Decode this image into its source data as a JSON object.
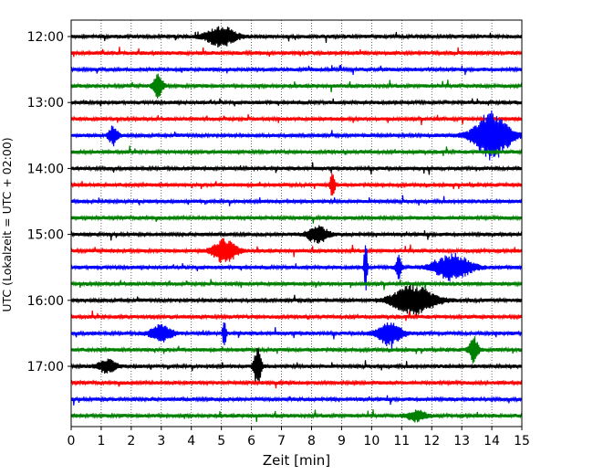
{
  "chart_data": {
    "type": "line",
    "title": "",
    "xlabel": "Zeit  [min]",
    "ylabel": "UTC (Lokalzeit = UTC + 02:00)",
    "xlim": [
      0,
      15
    ],
    "x_ticks": [
      "0",
      "1",
      "2",
      "3",
      "4",
      "5",
      "6",
      "7",
      "8",
      "9",
      "10",
      "11",
      "12",
      "13",
      "14",
      "15"
    ],
    "y_tick_labels": [
      "12:00",
      "13:00",
      "14:00",
      "15:00",
      "16:00",
      "17:00"
    ],
    "grid": {
      "vertical_dotted": true
    },
    "trace_colors": [
      "#000000",
      "#ff0000",
      "#0000ff",
      "#008000"
    ],
    "trace_start_hours": [
      "12:00",
      "12:15",
      "12:30",
      "12:45",
      "13:00",
      "13:15",
      "13:30",
      "13:45",
      "14:00",
      "14:15",
      "14:30",
      "14:45",
      "15:00",
      "15:15",
      "15:30",
      "15:45",
      "16:00",
      "16:15",
      "16:30",
      "16:45",
      "17:00",
      "17:15",
      "17:30",
      "17:45"
    ],
    "events": [
      {
        "trace": 0,
        "at_min": 5.0,
        "amp": 11,
        "width_min": 0.5
      },
      {
        "trace": 3,
        "at_min": 2.9,
        "amp": 14,
        "width_min": 0.15
      },
      {
        "trace": 6,
        "at_min": 14.0,
        "amp": 26,
        "width_min": 0.6
      },
      {
        "trace": 6,
        "at_min": 1.4,
        "amp": 11,
        "width_min": 0.15
      },
      {
        "trace": 9,
        "at_min": 8.7,
        "amp": 18,
        "width_min": 0.07
      },
      {
        "trace": 12,
        "at_min": 8.2,
        "amp": 9,
        "width_min": 0.35
      },
      {
        "trace": 13,
        "at_min": 5.1,
        "amp": 13,
        "width_min": 0.4
      },
      {
        "trace": 14,
        "at_min": 9.8,
        "amp": 36,
        "width_min": 0.05
      },
      {
        "trace": 14,
        "at_min": 10.9,
        "amp": 14,
        "width_min": 0.1
      },
      {
        "trace": 14,
        "at_min": 12.7,
        "amp": 14,
        "width_min": 0.6
      },
      {
        "trace": 16,
        "at_min": 11.4,
        "amp": 16,
        "width_min": 0.7
      },
      {
        "trace": 18,
        "at_min": 3.0,
        "amp": 9,
        "width_min": 0.35
      },
      {
        "trace": 18,
        "at_min": 5.1,
        "amp": 16,
        "width_min": 0.06
      },
      {
        "trace": 18,
        "at_min": 10.6,
        "amp": 12,
        "width_min": 0.4
      },
      {
        "trace": 19,
        "at_min": 13.4,
        "amp": 14,
        "width_min": 0.15
      },
      {
        "trace": 20,
        "at_min": 1.2,
        "amp": 7,
        "width_min": 0.3
      },
      {
        "trace": 20,
        "at_min": 6.2,
        "amp": 22,
        "width_min": 0.12
      },
      {
        "trace": 23,
        "at_min": 11.5,
        "amp": 6,
        "width_min": 0.3
      }
    ]
  }
}
